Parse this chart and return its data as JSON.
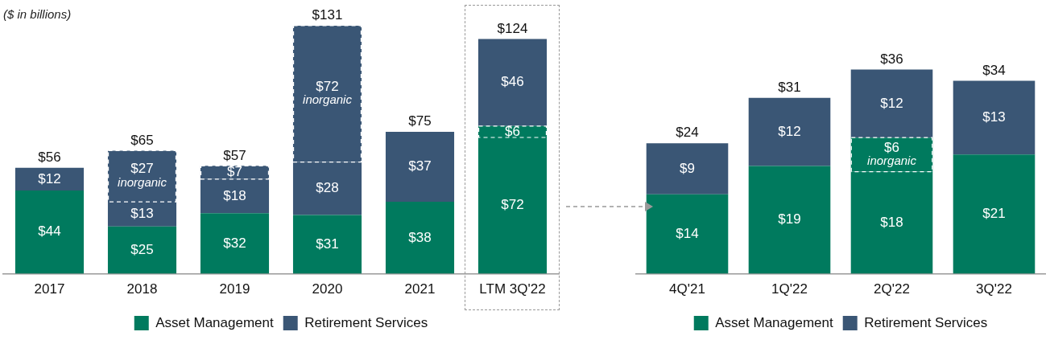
{
  "chart_data": [
    {
      "type": "bar",
      "title": "($ in billions)",
      "categories": [
        "2017",
        "2018",
        "2019",
        "2020",
        "2021",
        "LTM 3Q'22"
      ],
      "stacked": true,
      "legend": "bottom",
      "series": [
        {
          "name": "Asset Management",
          "color": "#007a5e",
          "values": [
            44,
            25,
            32,
            31,
            38,
            72
          ],
          "value_labels": [
            "$44",
            "$25",
            "$32",
            "$31",
            "$38",
            "$72"
          ]
        },
        {
          "color": "#007a5e",
          "line_style": "dashed",
          "values": [
            null,
            null,
            null,
            null,
            null,
            6
          ],
          "value_labels": [
            null,
            null,
            null,
            null,
            null,
            "$6"
          ]
        },
        {
          "name": "Retirement Services",
          "color": "#3a5675",
          "values": [
            12,
            13,
            18,
            28,
            37,
            46
          ],
          "value_labels": [
            "$12",
            "$13",
            "$18",
            "$28",
            "$37",
            "$46"
          ]
        },
        {
          "color": "#3a5675",
          "line_style": "dashed",
          "values": [
            null,
            27,
            7,
            72,
            null,
            null
          ],
          "value_labels": [
            null,
            "$27\ninorganic",
            "$7",
            "$72\ninorganic",
            null,
            null
          ]
        }
      ],
      "totals": [
        "$56",
        "$65",
        "$57",
        "$131",
        "$75",
        "$124"
      ]
    },
    {
      "type": "bar",
      "categories": [
        "4Q'21",
        "1Q'22",
        "2Q'22",
        "3Q'22"
      ],
      "stacked": true,
      "legend": "bottom",
      "series": [
        {
          "name": "Asset Management",
          "color": "#007a5e",
          "values": [
            14,
            19,
            18,
            21
          ],
          "value_labels": [
            "$14",
            "$19",
            "$18",
            "$21"
          ]
        },
        {
          "color": "#007a5e",
          "line_style": "dashed",
          "values": [
            null,
            null,
            6,
            null
          ],
          "value_labels": [
            null,
            null,
            "$6\ninorganic",
            null
          ]
        },
        {
          "name": "Retirement Services",
          "color": "#3a5675",
          "values": [
            9,
            12,
            12,
            13
          ],
          "value_labels": [
            "$9",
            "$12",
            "$12",
            "$13"
          ]
        }
      ],
      "totals": [
        "$24",
        "$31",
        "$36",
        "$34"
      ]
    }
  ]
}
